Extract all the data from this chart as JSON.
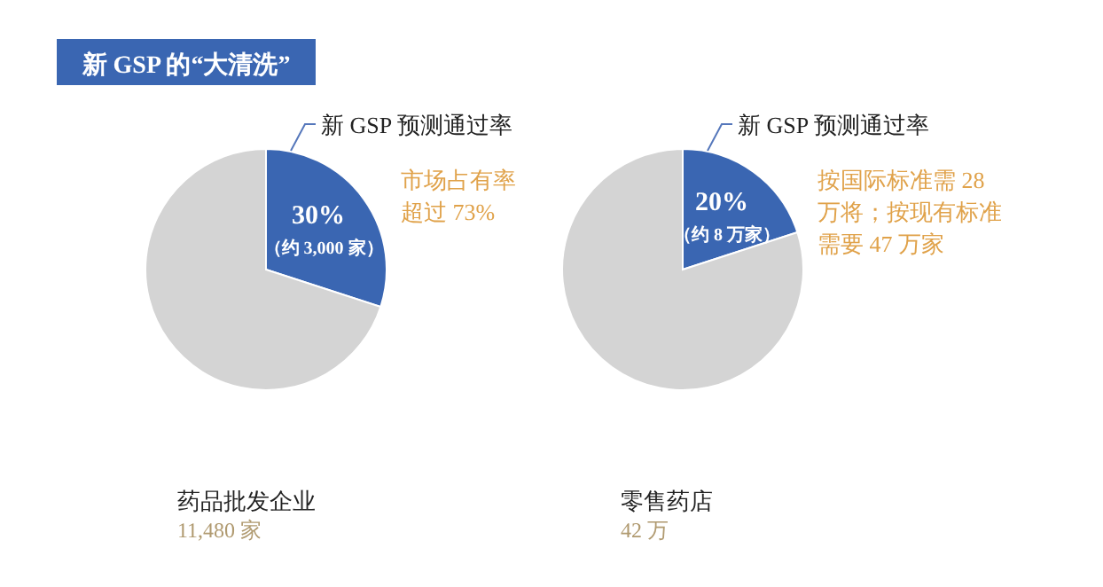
{
  "chart_data": [
    {
      "type": "pie",
      "title": "新 GSP 的“大清洗”",
      "categories": [
        "新 GSP 预测通过率",
        null
      ],
      "values": [
        30,
        70
      ],
      "colors": [
        "#3a66b2",
        "#d4d4d4"
      ],
      "value_labels": [
        "30%",
        null
      ],
      "annotations": [
        "（约 3,000 家）",
        "市场占有率",
        "超过 73%",
        "药品批发企业",
        "11,480 家"
      ]
    },
    {
      "type": "pie",
      "categories": [
        "新 GSP 预测通过率",
        null
      ],
      "values": [
        20,
        80
      ],
      "colors": [
        "#3a66b2",
        "#d4d4d4"
      ],
      "value_labels": [
        "20%",
        null
      ],
      "annotations": [
        "（约 8 万家）",
        "按国际标准需 28",
        "万将；按现有标准",
        "需要 47 万家",
        "零售药店",
        "42 万"
      ]
    }
  ]
}
